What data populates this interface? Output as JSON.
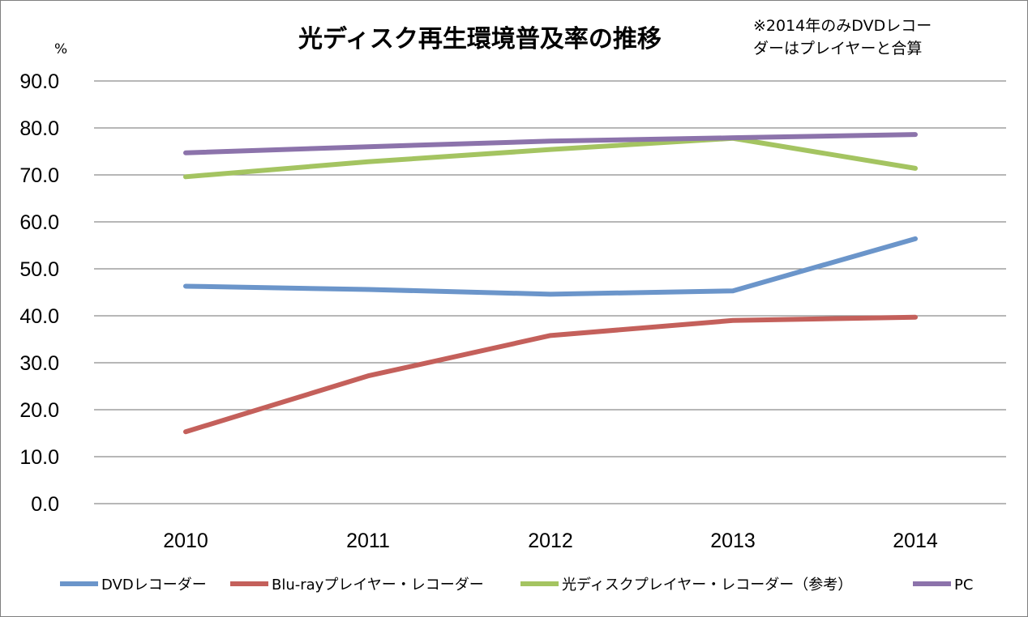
{
  "chart_data": {
    "type": "line",
    "title": "光ディスク再生環境普及率の推移",
    "note_lines": [
      "※2014年のみDVDレコー",
      "ダーはプレイヤーと合算"
    ],
    "unit_label": "%",
    "categories": [
      "2010",
      "2011",
      "2012",
      "2013",
      "2014"
    ],
    "ylim": [
      0,
      90
    ],
    "y_ticks": [
      "0.0",
      "10.0",
      "20.0",
      "30.0",
      "40.0",
      "50.0",
      "60.0",
      "70.0",
      "80.0",
      "90.0"
    ],
    "grid": true,
    "legend_position": "bottom",
    "series": [
      {
        "name": "DVDレコーダー",
        "color": "#6b95ca",
        "values": [
          46.3,
          45.6,
          44.6,
          45.3,
          56.4
        ]
      },
      {
        "name": "Blu-rayプレイヤー・レコーダー",
        "color": "#c4605b",
        "values": [
          15.3,
          27.2,
          35.8,
          39.0,
          39.7
        ]
      },
      {
        "name": "光ディスクプレイヤー・レコーダー（参考）",
        "color": "#a4c461",
        "values": [
          69.6,
          72.8,
          75.4,
          77.8,
          71.4
        ]
      },
      {
        "name": "PC",
        "color": "#8c73ab",
        "values": [
          74.7,
          76.0,
          77.2,
          77.9,
          78.6
        ]
      }
    ]
  }
}
